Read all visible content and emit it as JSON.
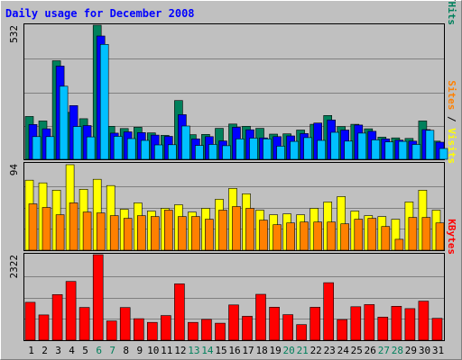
{
  "chart_data": {
    "type": "bar",
    "title": "Daily usage for December 2008",
    "colors": {
      "background": "#c0c0c0",
      "hits": "#00805c",
      "files": "#0000ff",
      "pages": "#00c0ff",
      "visits": "#ffff00",
      "sites": "#ff8000",
      "kbytes": "#ff0000",
      "title": "#0000ff",
      "weekend_label": "#00805c"
    },
    "categories": [
      "1",
      "2",
      "3",
      "4",
      "5",
      "6",
      "7",
      "8",
      "9",
      "10",
      "11",
      "12",
      "13",
      "14",
      "15",
      "16",
      "17",
      "18",
      "19",
      "20",
      "21",
      "22",
      "23",
      "24",
      "25",
      "26",
      "27",
      "28",
      "29",
      "30",
      "31"
    ],
    "weekend_days": [
      "6",
      "7",
      "13",
      "14",
      "20",
      "21",
      "27",
      "28"
    ],
    "panels": [
      {
        "name": "top",
        "max_label": "532",
        "ymax": 532,
        "legend": [
          {
            "text": "Pages",
            "color": "#00c0ff"
          },
          {
            "text": "/",
            "color": "#000000"
          },
          {
            "text": "Files",
            "color": "#0000ff"
          },
          {
            "text": "/",
            "color": "#000000"
          },
          {
            "text": "Hits",
            "color": "#00805c"
          }
        ],
        "series": [
          {
            "name": "Hits",
            "color": "#00805c",
            "values": [
              170,
              152,
              391,
              186,
              161,
              532,
              131,
              122,
              127,
              105,
              95,
              233,
              98,
              99,
              123,
              140,
              131,
              123,
              100,
              101,
              116,
              139,
              174,
              130,
              139,
              121,
              88,
              85,
              83,
              152,
              72
            ]
          },
          {
            "name": "Files",
            "color": "#0000ff",
            "values": [
              138,
              121,
              370,
              213,
              134,
              489,
              104,
              109,
              106,
              96,
              91,
              177,
              81,
              90,
              73,
              127,
              117,
              85,
              90,
              93,
              102,
              144,
              156,
              116,
              136,
              111,
              81,
              76,
              72,
              118,
              68
            ]
          },
          {
            "name": "Pages",
            "color": "#00c0ff",
            "values": [
              90,
              90,
              290,
              130,
              89,
              456,
              91,
              82,
              75,
              57,
              58,
              132,
              55,
              59,
              54,
              81,
              84,
              81,
              52,
              71,
              86,
              75,
              107,
              72,
              104,
              77,
              69,
              71,
              59,
              115,
              43
            ]
          }
        ]
      },
      {
        "name": "middle",
        "max_label": "94",
        "ymax": 94,
        "legend": [
          {
            "text": "Sites",
            "color": "#ff8000"
          },
          {
            "text": " / ",
            "color": "#000000"
          },
          {
            "text": "Visits",
            "color": "#ffff00"
          }
        ],
        "series": [
          {
            "name": "Visits",
            "color": "#ffff00",
            "values": [
              77,
              74,
              66,
              94,
              67,
              78,
              71,
              45,
              52,
              43,
              46,
              50,
              42,
              46,
              56,
              68,
              62,
              44,
              39,
              40,
              39,
              46,
              53,
              59,
              43,
              38,
              37,
              34,
              53,
              66,
              44
            ]
          },
          {
            "name": "Sites",
            "color": "#ff8000",
            "values": [
              51,
              47,
              39,
              52,
              42,
              41,
              38,
              35,
              38,
              37,
              44,
              37,
              37,
              34,
              44,
              48,
              46,
              33,
              28,
              30,
              31,
              31,
              31,
              29,
              34,
              35,
              26,
              12,
              36,
              36,
              30
            ]
          }
        ]
      },
      {
        "name": "bottom",
        "max_label": "2322",
        "ymax": 2322,
        "legend": [
          {
            "text": "KBytes",
            "color": "#ff0000"
          }
        ],
        "series": [
          {
            "name": "KBytes",
            "color": "#ff0000",
            "values": [
              1028,
              687,
              1238,
              1596,
              889,
              2322,
              524,
              887,
              583,
              483,
              670,
              1530,
              483,
              564,
              463,
              958,
              649,
              1246,
              896,
              693,
              423,
              895,
              1561,
              560,
              910,
              969,
              627,
              922,
              858,
              1060,
              595
            ]
          }
        ]
      }
    ]
  }
}
